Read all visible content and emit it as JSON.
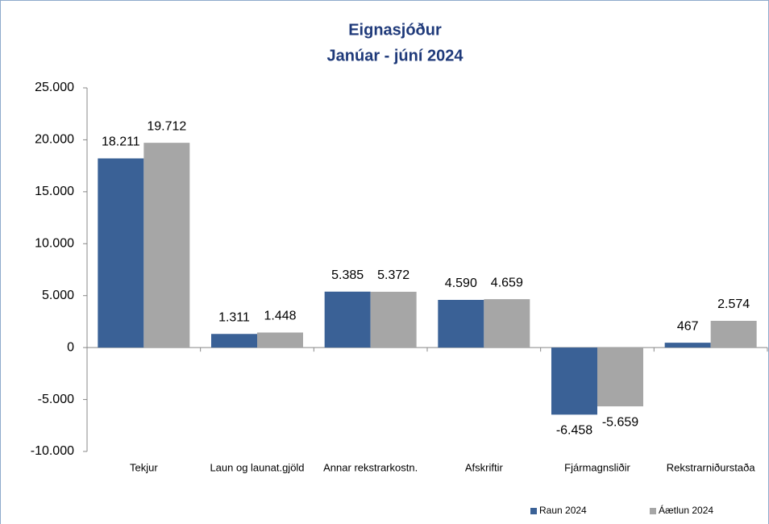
{
  "chart_data": {
    "type": "bar",
    "title": "Eignasjóður",
    "subtitle": "Janúar - júní 2024",
    "categories": [
      "Tekjur",
      "Laun og launat.gjöld",
      "Annar rekstrarkostn.",
      "Afskriftir",
      "Fjármagnsliðir",
      "Rekstrarniðurstaða"
    ],
    "series": [
      {
        "name": "Raun 2024",
        "color": "#3a6196",
        "values": [
          18211,
          1311,
          5385,
          4590,
          -6458,
          467
        ],
        "value_labels": [
          "18.211",
          "1.311",
          "5.385",
          "4.590",
          "-6.458",
          "467"
        ]
      },
      {
        "name": "Áætlun 2024",
        "color": "#a6a6a6",
        "values": [
          19712,
          1448,
          5372,
          4659,
          -5659,
          2574
        ],
        "value_labels": [
          "19.712",
          "1.448",
          "5.372",
          "4.659",
          "-5.659",
          "2.574"
        ]
      }
    ],
    "ylim": [
      -10000,
      25000
    ],
    "yticks": [
      {
        "value": -10000,
        "label": "-10.000"
      },
      {
        "value": -5000,
        "label": "-5.000"
      },
      0,
      {
        "value": 5000,
        "label": "5.000"
      },
      {
        "value": 10000,
        "label": "10.000"
      },
      {
        "value": 15000,
        "label": "15.000"
      },
      {
        "value": 20000,
        "label": "20.000"
      },
      {
        "value": 25000,
        "label": "25.000"
      }
    ],
    "legend": "bottom-right"
  }
}
